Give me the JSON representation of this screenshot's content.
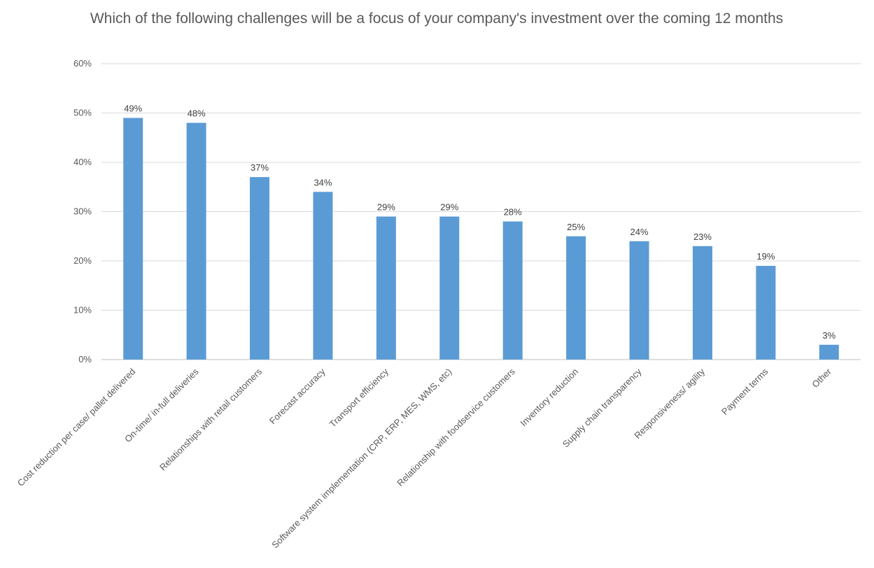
{
  "chart_data": {
    "type": "bar",
    "title": "Which of the following challenges will be a focus of your company's investment over the coming 12 months",
    "xlabel": "",
    "ylabel": "",
    "ylim": [
      0,
      60
    ],
    "y_ticks": [
      "0%",
      "10%",
      "20%",
      "30%",
      "40%",
      "50%",
      "60%"
    ],
    "grid": true,
    "legend": "none",
    "bar_color": "#5B9BD5",
    "categories": [
      "Cost reduction per case/ pallet delivered",
      "On-time/ in-full deliveries",
      "Relationships with retail customers",
      "Forecast accuracy",
      "Transport efficiency",
      "Software system implementation (CRP, ERP, MES, WMS, etc)",
      "Relationship with foodservice customers",
      "Inventory reduction",
      "Supply chain transparency",
      "Responsiveness/ agility",
      "Payment terms",
      "Other"
    ],
    "values": [
      49,
      48,
      37,
      34,
      29,
      29,
      28,
      25,
      24,
      23,
      19,
      3
    ],
    "data_labels": [
      "49%",
      "48%",
      "37%",
      "34%",
      "29%",
      "29%",
      "28%",
      "25%",
      "24%",
      "23%",
      "19%",
      "3%"
    ]
  }
}
